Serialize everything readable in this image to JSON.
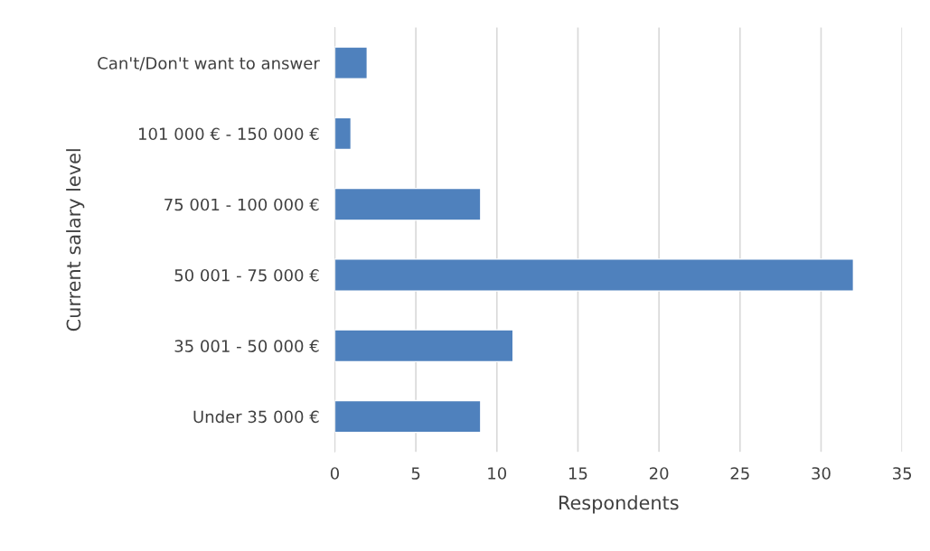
{
  "chart_data": {
    "type": "bar",
    "orientation": "horizontal",
    "categories": [
      "Can't/Don't want to answer",
      "101 000 € - 150 000 €",
      "75 001 - 100 000 €",
      "50 001 - 75 000 €",
      "35 001 - 50 000 €",
      "Under 35 000 €"
    ],
    "values": [
      2,
      1,
      9,
      32,
      11,
      9
    ],
    "color": "#4f81bd",
    "xlabel": "Respondents",
    "ylabel": "Current salary level",
    "xlim": [
      0,
      35
    ],
    "xticks": [
      0,
      5,
      10,
      15,
      20,
      25,
      30,
      35
    ],
    "grid": "x",
    "legend": false
  }
}
